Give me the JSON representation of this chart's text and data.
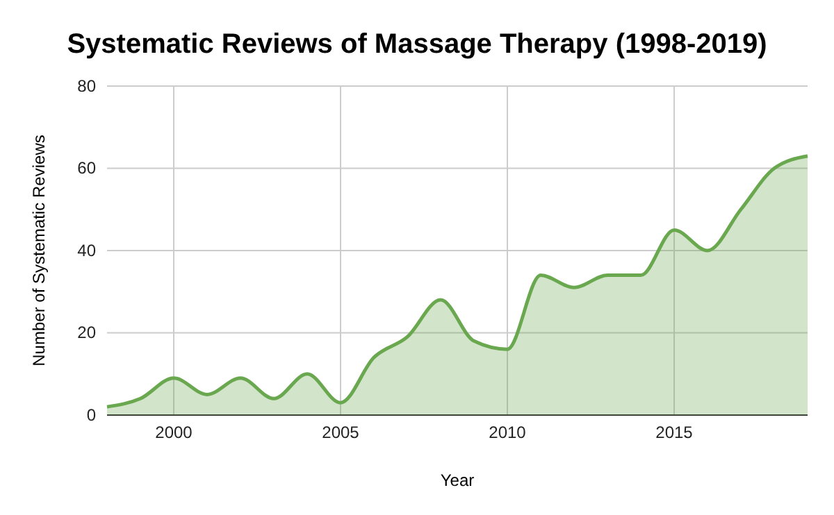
{
  "chart_data": {
    "type": "area",
    "title": "Systematic Reviews of Massage Therapy (1998-2019)",
    "xlabel": "Year",
    "ylabel": "Number of Systematic Reviews",
    "x": [
      1998,
      1999,
      2000,
      2001,
      2002,
      2003,
      2004,
      2005,
      2006,
      2007,
      2008,
      2009,
      2010,
      2011,
      2012,
      2013,
      2014,
      2015,
      2016,
      2017,
      2018,
      2019
    ],
    "series": [
      {
        "color": "#6aa84f",
        "values": [
          2,
          4,
          9,
          5,
          9,
          4,
          10,
          3,
          14,
          19,
          28,
          18,
          16,
          34,
          31,
          34,
          34,
          45,
          40,
          50,
          60,
          63
        ]
      }
    ],
    "xlim": [
      1998,
      2019
    ],
    "xticks": [
      2000,
      2005,
      2010,
      2015
    ],
    "ylim": [
      0,
      80
    ],
    "yticks": [
      0,
      20,
      40,
      60,
      80
    ],
    "grid": true
  }
}
